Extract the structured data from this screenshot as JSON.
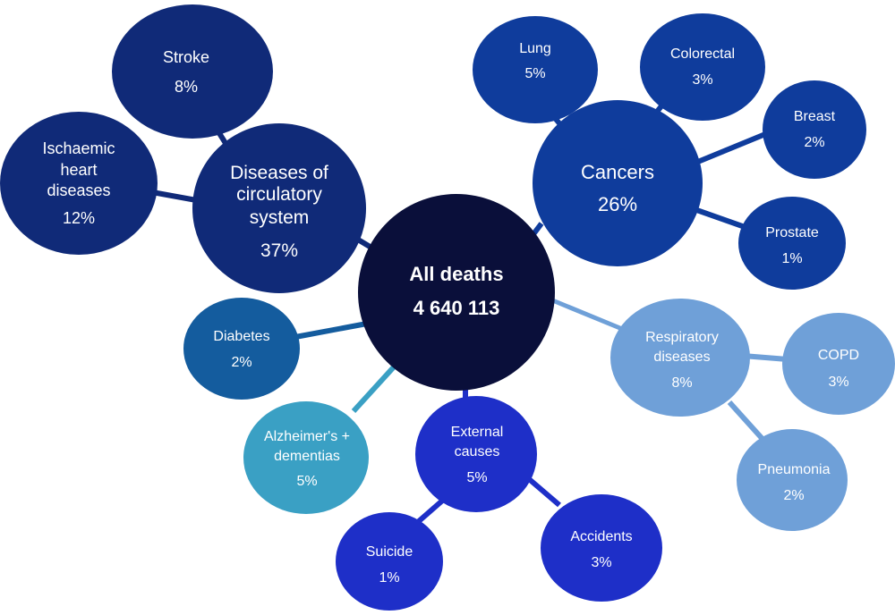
{
  "center": {
    "line1": "All deaths",
    "line2": "4 640 113",
    "color": "#0a0f3a"
  },
  "colors": {
    "circulatory": "#102a78",
    "cancers": "#0f3c9c",
    "respiratory": "#6fa0d8",
    "external": "#1e2fc8",
    "diabetes": "#145c9e",
    "alzheimers": "#3aa0c4"
  },
  "nodes": {
    "circulatory": {
      "lines": [
        "Diseases of",
        "circulatory",
        "system"
      ],
      "pct": "37%"
    },
    "stroke": {
      "lines": [
        "Stroke"
      ],
      "pct": "8%"
    },
    "ischaemic": {
      "lines": [
        "Ischaemic",
        "heart",
        "diseases"
      ],
      "pct": "12%"
    },
    "cancers": {
      "lines": [
        "Cancers"
      ],
      "pct": "26%"
    },
    "lung": {
      "lines": [
        "Lung"
      ],
      "pct": "5%"
    },
    "colorectal": {
      "lines": [
        "Colorectal"
      ],
      "pct": "3%"
    },
    "breast": {
      "lines": [
        "Breast"
      ],
      "pct": "2%"
    },
    "prostate": {
      "lines": [
        "Prostate"
      ],
      "pct": "1%"
    },
    "respiratory": {
      "lines": [
        "Respiratory",
        "diseases"
      ],
      "pct": "8%"
    },
    "copd": {
      "lines": [
        "COPD"
      ],
      "pct": "3%"
    },
    "pneumonia": {
      "lines": [
        "Pneumonia"
      ],
      "pct": "2%"
    },
    "external": {
      "lines": [
        "External",
        "causes"
      ],
      "pct": "5%"
    },
    "suicide": {
      "lines": [
        "Suicide"
      ],
      "pct": "1%"
    },
    "accidents": {
      "lines": [
        "Accidents"
      ],
      "pct": "3%"
    },
    "diabetes": {
      "lines": [
        "Diabetes"
      ],
      "pct": "2%"
    },
    "alzheimers": {
      "lines": [
        "Alzheimer's +",
        "dementias"
      ],
      "pct": "5%"
    }
  }
}
